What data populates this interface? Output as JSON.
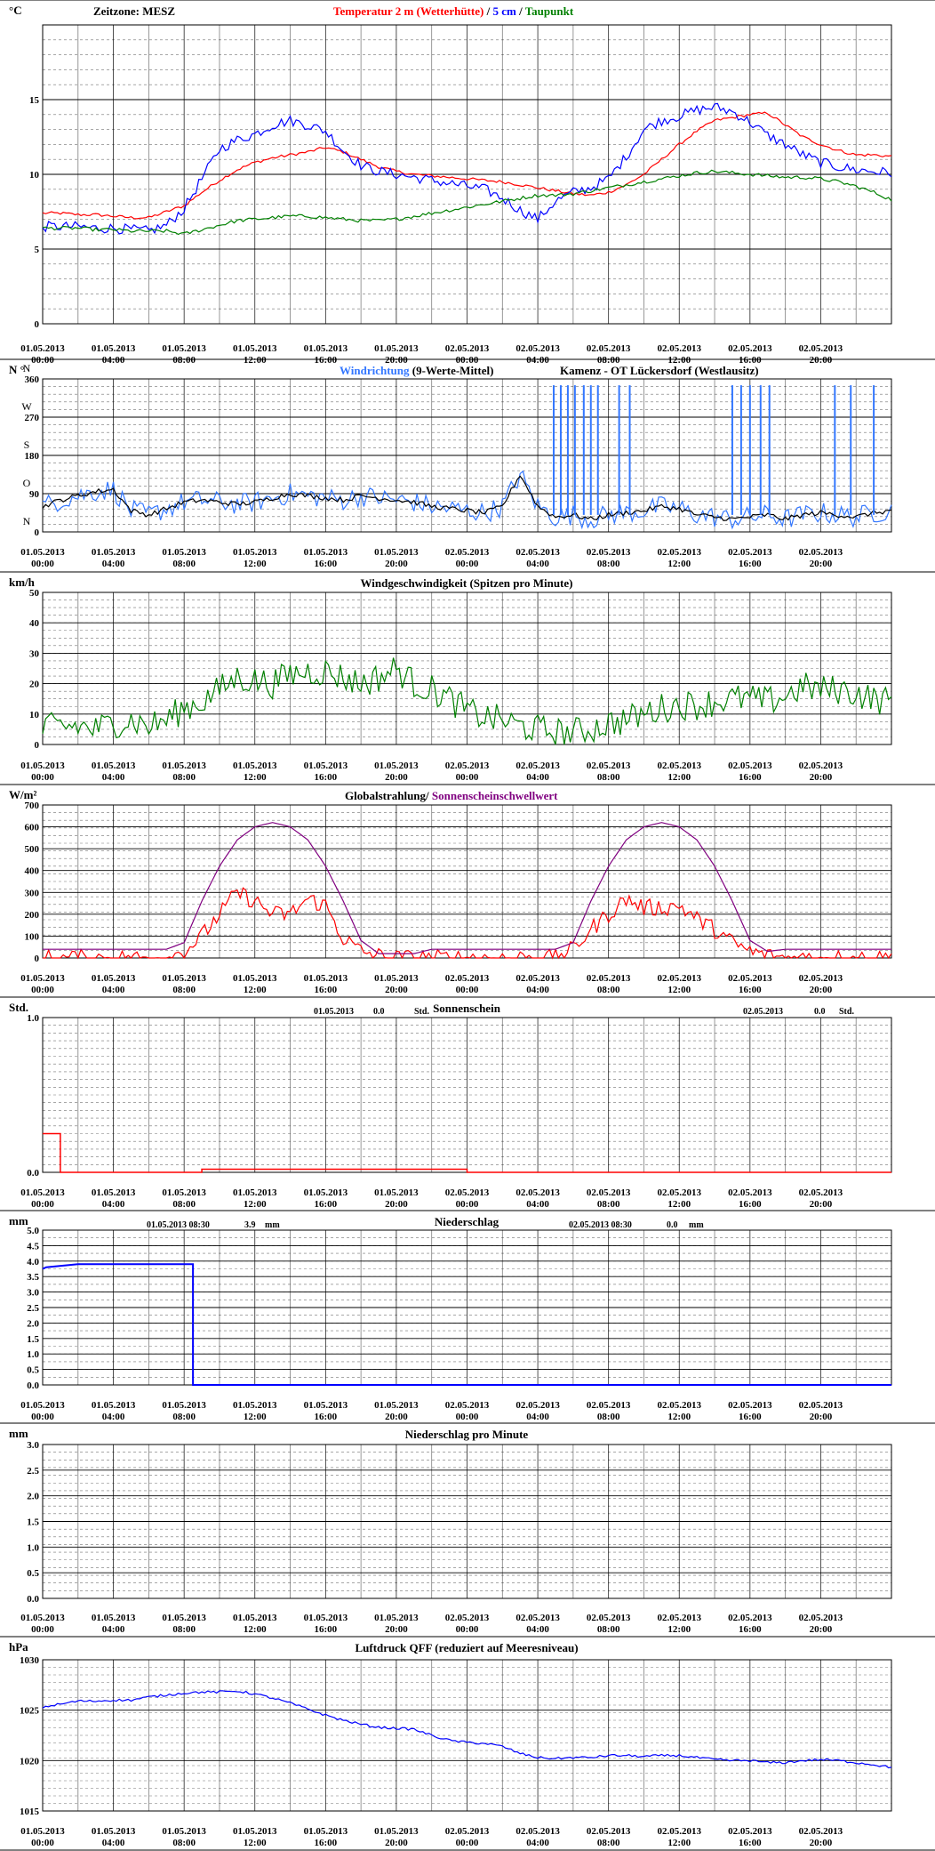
{
  "x_ticks": [
    {
      "date": "01.05.2013",
      "time": "00:00"
    },
    {
      "date": "01.05.2013",
      "time": "04:00"
    },
    {
      "date": "01.05.2013",
      "time": "08:00"
    },
    {
      "date": "01.05.2013",
      "time": "12:00"
    },
    {
      "date": "01.05.2013",
      "time": "16:00"
    },
    {
      "date": "01.05.2013",
      "time": "20:00"
    },
    {
      "date": "02.05.2013",
      "time": "00:00"
    },
    {
      "date": "02.05.2013",
      "time": "04:00"
    },
    {
      "date": "02.05.2013",
      "time": "08:00"
    },
    {
      "date": "02.05.2013",
      "time": "12:00"
    },
    {
      "date": "02.05.2013",
      "time": "16:00"
    },
    {
      "date": "02.05.2013",
      "time": "20:00"
    }
  ],
  "colors": {
    "red": "#ff0000",
    "blue": "#0000ff",
    "green": "#008000",
    "purple": "#800080",
    "lightblue": "#3377ff",
    "black": "#000000"
  },
  "chart_data": [
    {
      "id": "temperature",
      "type": "line",
      "unit": "°C",
      "timezone_label": "Zeitzone: MESZ",
      "title_parts": [
        {
          "text": "Temperatur 2 m (Wetterhütte)",
          "color": "red"
        },
        {
          "text": "  /  ",
          "color": "black"
        },
        {
          "text": "5 cm",
          "color": "blue"
        },
        {
          "text": " / ",
          "color": "black"
        },
        {
          "text": "Taupunkt",
          "color": "green"
        }
      ],
      "y_ticks": [
        "0",
        "5",
        "10",
        "15"
      ],
      "ylim": [
        0,
        20
      ],
      "x_hours": [
        0,
        1,
        2,
        3,
        4,
        5,
        6,
        7,
        8,
        9,
        10,
        11,
        12,
        13,
        14,
        15,
        16,
        17,
        18,
        19,
        20,
        21,
        22,
        23,
        24,
        25,
        26,
        27,
        28,
        29,
        30,
        31,
        32,
        33,
        34,
        35,
        36,
        37,
        38,
        39,
        40,
        41,
        42,
        43,
        44,
        45,
        46,
        47,
        48
      ],
      "series": [
        {
          "name": "Temperatur 2 m (Wetterhütte)",
          "color": "red",
          "noise": 0.1,
          "values": [
            7.4,
            7.4,
            7.3,
            7.3,
            7.2,
            7.1,
            7.1,
            7.5,
            7.9,
            8.8,
            9.6,
            10.3,
            10.8,
            11.1,
            11.3,
            11.5,
            11.8,
            11.5,
            11.0,
            10.5,
            10.2,
            10.0,
            9.9,
            9.8,
            9.7,
            9.6,
            9.5,
            9.3,
            9.1,
            8.9,
            8.7,
            8.6,
            8.8,
            9.3,
            10.0,
            11.0,
            12.0,
            12.9,
            13.6,
            13.8,
            14.0,
            14.1,
            13.3,
            12.5,
            12.0,
            11.6,
            11.3,
            11.3,
            11.2
          ]
        },
        {
          "name": "5 cm",
          "color": "blue",
          "noise": 0.35,
          "values": [
            6.5,
            6.5,
            6.5,
            6.4,
            6.4,
            6.3,
            6.2,
            6.6,
            7.7,
            9.7,
            11.7,
            12.3,
            12.7,
            13.3,
            13.6,
            13.3,
            12.9,
            11.6,
            10.6,
            10.2,
            10.0,
            9.8,
            9.6,
            9.4,
            9.2,
            9.0,
            8.4,
            7.6,
            7.0,
            8.2,
            8.8,
            9.1,
            9.7,
            11.2,
            13.0,
            13.6,
            13.9,
            14.3,
            14.5,
            14.2,
            13.5,
            12.6,
            12.0,
            11.3,
            10.8,
            10.5,
            10.3,
            10.2,
            10.1
          ]
        },
        {
          "name": "Taupunkt",
          "color": "green",
          "noise": 0.12,
          "values": [
            6.4,
            6.4,
            6.4,
            6.3,
            6.3,
            6.2,
            6.2,
            6.2,
            6.0,
            6.3,
            6.6,
            6.9,
            7.0,
            7.1,
            7.2,
            7.2,
            7.1,
            7.0,
            6.9,
            6.9,
            7.0,
            7.2,
            7.4,
            7.6,
            7.8,
            8.0,
            8.2,
            8.4,
            8.6,
            8.6,
            8.7,
            8.9,
            9.1,
            9.3,
            9.5,
            9.7,
            9.9,
            10.1,
            10.2,
            10.1,
            10.0,
            9.9,
            9.8,
            9.8,
            9.7,
            9.5,
            9.2,
            8.8,
            8.3
          ]
        }
      ]
    },
    {
      "id": "wind_direction",
      "type": "line",
      "unit": "N °",
      "title_parts": [
        {
          "text": "Windrichtung",
          "color": "lightblue"
        },
        {
          "text": " (9-Werte-Mittel)",
          "color": "black"
        }
      ],
      "station": "Kamenz - OT Lückersdorf (Westlausitz)",
      "y_ticks": [
        "0",
        "90",
        "180",
        "270",
        "360"
      ],
      "compass_labels": [
        "N",
        "O",
        "S",
        "W",
        "N"
      ],
      "ylim": [
        0,
        360
      ],
      "x_hours": [
        0,
        1,
        2,
        3,
        4,
        5,
        6,
        7,
        8,
        9,
        10,
        11,
        12,
        13,
        14,
        15,
        16,
        17,
        18,
        19,
        20,
        21,
        22,
        23,
        24,
        25,
        26,
        27,
        28,
        29,
        30,
        31,
        32,
        33,
        34,
        35,
        36,
        37,
        38,
        39,
        40,
        41,
        42,
        43,
        44,
        45,
        46,
        47,
        48
      ],
      "series": [
        {
          "name": "Windrichtung",
          "color": "lightblue",
          "noise": 25,
          "values": [
            60,
            75,
            85,
            95,
            100,
            50,
            40,
            55,
            70,
            75,
            70,
            65,
            70,
            80,
            90,
            85,
            80,
            75,
            85,
            80,
            75,
            70,
            60,
            55,
            50,
            45,
            60,
            135,
            60,
            35,
            40,
            30,
            40,
            45,
            50,
            60,
            55,
            40,
            35,
            30,
            35,
            40,
            30,
            40,
            45,
            40,
            35,
            45,
            50
          ]
        },
        {
          "name": "9-Werte-Mittel",
          "color": "black",
          "noise": 6,
          "values": [
            60,
            75,
            85,
            95,
            100,
            50,
            40,
            55,
            70,
            75,
            70,
            65,
            70,
            80,
            90,
            85,
            80,
            75,
            85,
            80,
            75,
            70,
            60,
            55,
            50,
            45,
            60,
            135,
            60,
            35,
            40,
            30,
            40,
            45,
            50,
            60,
            55,
            40,
            35,
            30,
            35,
            40,
            30,
            40,
            45,
            40,
            35,
            45,
            50
          ]
        }
      ],
      "spikes_hours": [
        28.9,
        29.3,
        29.7,
        30.1,
        30.6,
        31.0,
        31.4,
        32.6,
        33.2,
        39.0,
        39.5,
        40.0,
        40.6,
        41.1,
        44.8,
        45.7,
        47.0
      ]
    },
    {
      "id": "wind_speed",
      "type": "line",
      "unit": "km/h",
      "title": "Windgeschwindigkeit (Spitzen pro Minute)",
      "y_ticks": [
        "0",
        "10",
        "20",
        "30",
        "40",
        "50"
      ],
      "ylim": [
        0,
        50
      ],
      "x_hours": [
        0,
        1,
        2,
        3,
        4,
        5,
        6,
        7,
        8,
        9,
        10,
        11,
        12,
        13,
        14,
        15,
        16,
        17,
        18,
        19,
        20,
        21,
        22,
        23,
        24,
        25,
        26,
        27,
        28,
        29,
        30,
        31,
        32,
        33,
        34,
        35,
        36,
        37,
        38,
        39,
        40,
        41,
        42,
        43,
        44,
        45,
        46,
        47,
        48
      ],
      "series": [
        {
          "name": "Windgeschwindigkeit",
          "color": "green",
          "noise": 5,
          "values": [
            5,
            6,
            6,
            5,
            7,
            8,
            6,
            8,
            12,
            14,
            18,
            22,
            21,
            20,
            23,
            24,
            24,
            22,
            20,
            22,
            25,
            20,
            18,
            15,
            11,
            9,
            8,
            6,
            5,
            4,
            4,
            5,
            7,
            8,
            10,
            12,
            13,
            13,
            14,
            15,
            15,
            14,
            16,
            19,
            18,
            18,
            17,
            15,
            14
          ]
        }
      ]
    },
    {
      "id": "radiation",
      "type": "line",
      "unit": "W/m²",
      "title_parts": [
        {
          "text": "Globalstrahlung/ ",
          "color": "black"
        },
        {
          "text": "Sonnenscheinschwellwert",
          "color": "purple"
        }
      ],
      "y_ticks": [
        "0",
        "100",
        "200",
        "300",
        "400",
        "500",
        "600",
        "700"
      ],
      "ylim": [
        0,
        700
      ],
      "x_hours": [
        0,
        1,
        2,
        3,
        4,
        5,
        6,
        7,
        8,
        9,
        10,
        11,
        12,
        13,
        14,
        15,
        16,
        17,
        18,
        19,
        20,
        21,
        22,
        23,
        24,
        25,
        26,
        27,
        28,
        29,
        30,
        31,
        32,
        33,
        34,
        35,
        36,
        37,
        38,
        39,
        40,
        41,
        42,
        43,
        44,
        45,
        46,
        47,
        48
      ],
      "series": [
        {
          "name": "Globalstrahlung",
          "color": "red",
          "noise": 40,
          "values": [
            0,
            0,
            0,
            0,
            0,
            0,
            0,
            0,
            30,
            100,
            200,
            300,
            260,
            200,
            200,
            270,
            240,
            90,
            30,
            10,
            0,
            0,
            0,
            0,
            0,
            0,
            0,
            0,
            0,
            0,
            40,
            130,
            200,
            270,
            230,
            230,
            240,
            180,
            130,
            70,
            30,
            10,
            0,
            0,
            0,
            0,
            0,
            0,
            0
          ]
        },
        {
          "name": "Sonnenscheinschwellwert",
          "color": "purple",
          "noise": 0,
          "values": [
            40,
            40,
            40,
            40,
            40,
            40,
            40,
            40,
            70,
            260,
            420,
            540,
            600,
            620,
            600,
            540,
            420,
            260,
            80,
            20,
            20,
            20,
            40,
            40,
            40,
            40,
            40,
            40,
            40,
            40,
            70,
            260,
            420,
            540,
            600,
            620,
            600,
            540,
            420,
            260,
            80,
            30,
            40,
            40,
            40,
            40,
            40,
            40,
            40
          ]
        }
      ]
    },
    {
      "id": "sunshine",
      "type": "bar",
      "unit": "Std.",
      "title": "Sonnenschein",
      "y_ticks": [
        "0.0",
        "1.0"
      ],
      "ylim": [
        0,
        1
      ],
      "daily_totals": [
        {
          "date": "01.05.2013",
          "value": "0.0",
          "unit": "Std."
        },
        {
          "date": "02.05.2013",
          "value": "0.0",
          "unit": "Std."
        }
      ],
      "hourly_values": [
        0.25,
        0,
        0,
        0,
        0,
        0,
        0,
        0,
        0,
        0.02,
        0.02,
        0.02,
        0.02,
        0.02,
        0.02,
        0.02,
        0.02,
        0.02,
        0.02,
        0.02,
        0.02,
        0.02,
        0.02,
        0.02,
        0,
        0,
        0,
        0,
        0,
        0,
        0,
        0,
        0,
        0,
        0,
        0,
        0,
        0,
        0,
        0,
        0,
        0,
        0,
        0,
        0,
        0,
        0,
        0
      ]
    },
    {
      "id": "precip",
      "type": "line",
      "unit": "mm",
      "title": "Niederschlag",
      "y_ticks": [
        "0.0",
        "0.5",
        "1.0",
        "1.5",
        "2.0",
        "2.5",
        "3.0",
        "3.5",
        "4.0",
        "4.5",
        "5.0"
      ],
      "ylim": [
        0,
        5
      ],
      "daily_totals": [
        {
          "date": "01.05.2013 08:30",
          "value": "3.9",
          "unit": "mm"
        },
        {
          "date": "02.05.2013 08:30",
          "value": "0.0",
          "unit": "mm"
        }
      ],
      "steps": [
        [
          0,
          3.75
        ],
        [
          0.2,
          3.8
        ],
        [
          2,
          3.9
        ],
        [
          8.5,
          3.9
        ],
        [
          8.5,
          0
        ],
        [
          48,
          0
        ]
      ]
    },
    {
      "id": "precip_min",
      "type": "line",
      "unit": "mm",
      "title": "Niederschlag pro Minute",
      "y_ticks": [
        "0.0",
        "0.5",
        "1.0",
        "1.5",
        "2.0",
        "2.5",
        "3.0"
      ],
      "ylim": [
        0,
        3
      ],
      "series": []
    },
    {
      "id": "pressure",
      "type": "line",
      "unit": "hPa",
      "title": "Luftdruck QFF (reduziert auf Meeresniveau)",
      "y_ticks": [
        "1015",
        "1020",
        "1025",
        "1030"
      ],
      "ylim": [
        1015,
        1030
      ],
      "x_hours": [
        0,
        1,
        2,
        3,
        4,
        5,
        6,
        7,
        8,
        9,
        10,
        11,
        12,
        13,
        14,
        15,
        16,
        17,
        18,
        19,
        20,
        21,
        22,
        23,
        24,
        25,
        26,
        27,
        28,
        29,
        30,
        31,
        32,
        33,
        34,
        35,
        36,
        37,
        38,
        39,
        40,
        41,
        42,
        43,
        44,
        45,
        46,
        47,
        48
      ],
      "series": [
        {
          "name": "Luftdruck",
          "color": "blue",
          "noise": 0.12,
          "values": [
            1025.3,
            1025.6,
            1025.9,
            1025.9,
            1026.0,
            1026.0,
            1026.3,
            1026.5,
            1026.7,
            1026.8,
            1026.8,
            1026.9,
            1026.6,
            1026.2,
            1025.7,
            1025.1,
            1024.5,
            1024.0,
            1023.6,
            1023.3,
            1023.2,
            1023.1,
            1022.5,
            1022.0,
            1021.8,
            1021.7,
            1021.4,
            1020.7,
            1020.3,
            1020.2,
            1020.3,
            1020.3,
            1020.5,
            1020.5,
            1020.4,
            1020.5,
            1020.5,
            1020.3,
            1020.1,
            1020.0,
            1020.0,
            1019.8,
            1019.8,
            1020.0,
            1020.1,
            1020.0,
            1019.8,
            1019.6,
            1019.3
          ]
        }
      ]
    }
  ]
}
